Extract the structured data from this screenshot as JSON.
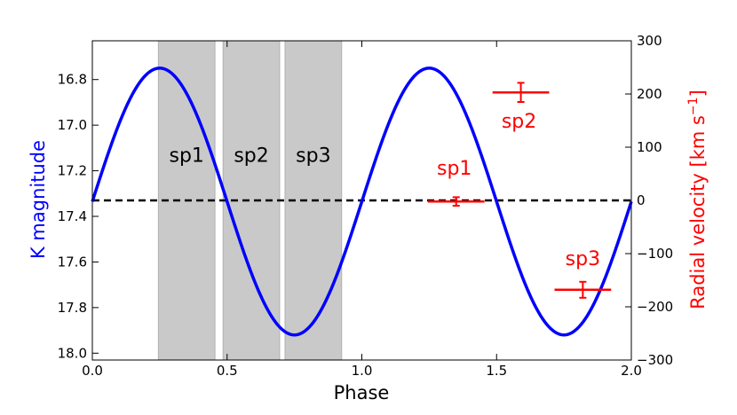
{
  "chart_data": {
    "type": "line",
    "title": "",
    "xlabel": "Phase",
    "ylabel_left": "K magnitude",
    "ylabel_right": "Radial velocity [km s",
    "ylabel_right_sup": "−1",
    "ylabel_right_close": "]",
    "xlim": [
      0.0,
      2.0
    ],
    "ylim_left": [
      18.03,
      16.63
    ],
    "ylim_right": [
      -300,
      300
    ],
    "x_ticks": [
      {
        "value": 0.0,
        "label": "0.0"
      },
      {
        "value": 0.5,
        "label": "0.5"
      },
      {
        "value": 1.0,
        "label": "1.0"
      },
      {
        "value": 1.5,
        "label": "1.5"
      },
      {
        "value": 2.0,
        "label": "2.0"
      }
    ],
    "y_left_ticks": [
      {
        "value": 16.8,
        "label": "16.8"
      },
      {
        "value": 17.0,
        "label": "17.0"
      },
      {
        "value": 17.2,
        "label": "17.2"
      },
      {
        "value": 17.4,
        "label": "17.4"
      },
      {
        "value": 17.6,
        "label": "17.6"
      },
      {
        "value": 17.8,
        "label": "17.8"
      },
      {
        "value": 18.0,
        "label": "18.0"
      }
    ],
    "y_right_ticks": [
      {
        "value": 300,
        "label": "300"
      },
      {
        "value": 200,
        "label": "200"
      },
      {
        "value": 100,
        "label": "100"
      },
      {
        "value": 0,
        "label": "0"
      },
      {
        "value": -100,
        "label": "−100"
      },
      {
        "value": -200,
        "label": "−200"
      },
      {
        "value": -300,
        "label": "−300"
      }
    ],
    "light_curve": {
      "mean": 17.335,
      "amplitude": 0.585,
      "period": 1.0,
      "phase_of_max": 0.25,
      "color": "#0000ff"
    },
    "zero_line": {
      "value": 0,
      "color": "#000000",
      "style": "dashed"
    },
    "spectral_bands": [
      {
        "label": "sp1",
        "x_start": 0.245,
        "x_end": 0.455
      },
      {
        "label": "sp2",
        "x_start": 0.485,
        "x_end": 0.695
      },
      {
        "label": "sp3",
        "x_start": 0.715,
        "x_end": 0.925
      }
    ],
    "band_color": "#c9c9c9",
    "rv_points": [
      {
        "label": "sp1",
        "phase": 1.35,
        "phase_err": 0.105,
        "rv": -2,
        "rv_err": 8
      },
      {
        "label": "sp2",
        "phase": 1.59,
        "phase_err": 0.105,
        "rv": 203,
        "rv_err": 18
      },
      {
        "label": "sp3",
        "phase": 1.82,
        "phase_err": 0.105,
        "rv": -168,
        "rv_err": 15
      }
    ],
    "rv_color": "#ff0000"
  }
}
